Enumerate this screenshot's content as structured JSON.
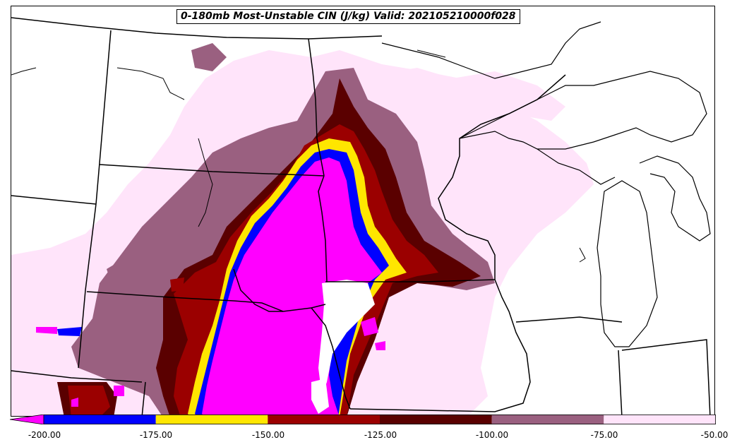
{
  "title": "0-180mb Most-Unstable CIN (J/kg) Valid: 202105210000f028",
  "colorbar": {
    "bins": [
      {
        "from": -200,
        "to": -175,
        "color": "#0000ff"
      },
      {
        "from": -175,
        "to": -150,
        "color": "#ffe600"
      },
      {
        "from": -150,
        "to": -125,
        "color": "#9b0000"
      },
      {
        "from": -125,
        "to": -100,
        "color": "#5a0000"
      },
      {
        "from": -100,
        "to": -75,
        "color": "#9a6080"
      },
      {
        "from": -75,
        "to": -50,
        "color": "#ffe4fa"
      }
    ],
    "extend_min_color": "#ff00ff",
    "tick_labels": [
      "-200.00",
      "-175.00",
      "-150.00",
      "-125.00",
      "-100.00",
      "-75.00",
      "-50.00"
    ]
  },
  "colors": {
    "below_min": "#ff00ff",
    "blue": "#0000ff",
    "yellow": "#ffe600",
    "red": "#9b0000",
    "dark_red": "#5a0000",
    "mauve": "#9a6080",
    "light_pink": "#ffe4fa"
  }
}
